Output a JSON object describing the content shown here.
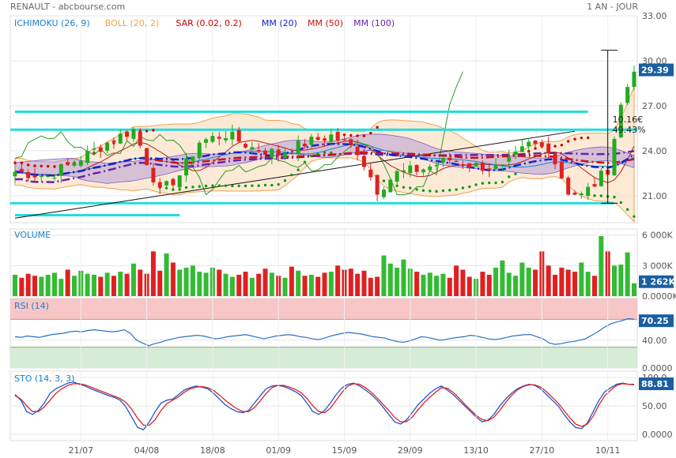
{
  "header": {
    "instrument": "RENAULT - abcbourse.com",
    "period": "1 AN - JOUR"
  },
  "colors": {
    "up": "#22aa22",
    "down": "#dd2222",
    "mm20": "#1122cc",
    "mm50": "#cc1111",
    "mm100": "#6622aa",
    "boll": "#f0a050",
    "sar": "#cc0000",
    "ichimoku": "#1a7fcf",
    "support": "#22dddd",
    "rsi_over": "#f7c6c6",
    "rsi_under": "#d6ecd6",
    "stoK": "#2255cc",
    "stoD": "#dd2222",
    "tag": "#1a5fa0",
    "tenkan": "#b02020",
    "chikou": "#2a9a2a"
  },
  "chart_data": [
    {
      "type": "candlestick",
      "title": "",
      "legend": [
        {
          "label": "ICHIMOKU (26, 9)",
          "color": "#1a7fcf"
        },
        {
          "label": "BOLL (20, 2)",
          "color": "#f0a050"
        },
        {
          "label": "SAR (0.02, 0.2)",
          "color": "#cc0000"
        },
        {
          "label": "MM (20)",
          "color": "#1122cc"
        },
        {
          "label": "MM (50)",
          "color": "#cc1111"
        },
        {
          "label": "MM (100)",
          "color": "#6622aa"
        }
      ],
      "y_ticks": [
        "33.00",
        "30.00",
        "27.00",
        "24.00",
        "21.00"
      ],
      "ylim": [
        19.2,
        33.0
      ],
      "last_value": "29.39",
      "annotation": {
        "amount": "10.16€",
        "percent": "49.43%",
        "from": 20.5,
        "to": 30.7
      },
      "support_levels": [
        26.6,
        25.4,
        20.5,
        19.7
      ],
      "trendline": {
        "from_index": 0,
        "from_value": 19.5,
        "to_index": 85,
        "to_value": 25.3
      },
      "mm20_last": 24.5,
      "mm50_last": 23.3,
      "mm100_last": 23.2
    },
    {
      "type": "bar",
      "title": "VOLUME",
      "y_ticks": [
        "6 000K",
        "3 000K",
        "0.0000K"
      ],
      "ylim": [
        0,
        6600
      ],
      "last_value": "1 262K",
      "values": [
        2100,
        1800,
        2200,
        2000,
        1900,
        2100,
        2300,
        1700,
        2600,
        2000,
        2500,
        2200,
        2100,
        1900,
        2300,
        2000,
        2400,
        2200,
        3200,
        2600,
        2200,
        4400,
        2500,
        4200,
        3300,
        2600,
        2800,
        3000,
        2400,
        2300,
        2800,
        2600,
        2200,
        1900,
        2100,
        2400,
        1800,
        2200,
        2700,
        2300,
        2000,
        1800,
        2900,
        2500,
        2000,
        2100,
        1900,
        2300,
        2400,
        3000,
        2600,
        2700,
        2200,
        2500,
        1800,
        1900,
        4000,
        3200,
        2800,
        3600,
        2700,
        2400,
        2100,
        2300,
        2000,
        2200,
        1800,
        3000,
        2600,
        1900,
        1700,
        2400,
        2100,
        2800,
        3500,
        2300,
        2000,
        3300,
        2800,
        2600,
        4400,
        3000,
        2100,
        2800,
        2600,
        2400,
        3300,
        2400,
        2000,
        5900,
        4400,
        3000,
        3100,
        4300,
        1262
      ]
    },
    {
      "type": "line",
      "title": "RSI (14)",
      "y_ticks": [
        "40.00",
        "0.0000"
      ],
      "ylim": [
        0,
        100
      ],
      "overbought": 70,
      "oversold": 30,
      "last_value": "70.25",
      "values": [
        45,
        44,
        46,
        45,
        44,
        46,
        48,
        49,
        50,
        52,
        53,
        52,
        54,
        55,
        54,
        53,
        52,
        53,
        55,
        50,
        40,
        36,
        32,
        35,
        37,
        40,
        42,
        44,
        45,
        46,
        47,
        46,
        44,
        42,
        43,
        45,
        46,
        47,
        48,
        46,
        44,
        42,
        44,
        46,
        47,
        48,
        47,
        45,
        44,
        42,
        41,
        43,
        46,
        48,
        50,
        51,
        50,
        49,
        47,
        45,
        44,
        43,
        40,
        38,
        37,
        39,
        42,
        45,
        44,
        42,
        40,
        41,
        43,
        44,
        45,
        47,
        46,
        44,
        42,
        41,
        42,
        44,
        46,
        47,
        48,
        48,
        45,
        42,
        36,
        34,
        35,
        37,
        38,
        40,
        42,
        47,
        52,
        58,
        63,
        66,
        68,
        71,
        70
      ]
    },
    {
      "type": "line",
      "title": "STO (14, 3, 3)",
      "y_ticks": [
        "100.0",
        "50.00",
        "0.0000"
      ],
      "ylim": [
        0,
        100
      ],
      "last_value": "88.81",
      "series": [
        {
          "values": [
            70,
            60,
            40,
            35,
            42,
            55,
            72,
            80,
            85,
            90,
            92,
            88,
            85,
            80,
            76,
            72,
            68,
            65,
            60,
            48,
            30,
            12,
            8,
            22,
            40,
            55,
            60,
            62,
            70,
            78,
            82,
            85,
            83,
            80,
            72,
            62,
            52,
            45,
            40,
            38,
            42,
            55,
            68,
            80,
            85,
            86,
            84,
            80,
            75,
            68,
            55,
            40,
            35,
            42,
            55,
            70,
            82,
            88,
            90,
            85,
            78,
            70,
            60,
            48,
            35,
            22,
            18,
            25,
            38,
            52,
            62,
            72,
            80,
            85,
            78,
            70,
            60,
            50,
            40,
            30,
            22,
            25,
            35,
            50,
            62,
            72,
            80,
            85,
            88,
            86,
            80,
            70,
            60,
            50,
            35,
            22,
            12,
            10,
            20,
            40,
            60,
            75,
            82,
            88,
            90,
            88,
            87
          ]
        },
        {
          "values": [
            68,
            62,
            50,
            40,
            40,
            48,
            60,
            72,
            80,
            86,
            89,
            89,
            87,
            83,
            79,
            75,
            71,
            67,
            63,
            56,
            44,
            28,
            16,
            16,
            26,
            42,
            54,
            60,
            66,
            74,
            80,
            83,
            84,
            82,
            77,
            69,
            60,
            52,
            45,
            40,
            40,
            47,
            59,
            72,
            82,
            86,
            86,
            83,
            79,
            73,
            63,
            50,
            40,
            38,
            46,
            60,
            74,
            85,
            89,
            88,
            82,
            74,
            64,
            53,
            42,
            30,
            22,
            22,
            30,
            43,
            55,
            65,
            74,
            82,
            81,
            74,
            64,
            53,
            43,
            33,
            26,
            24,
            30,
            42,
            56,
            68,
            78,
            84,
            87,
            87,
            83,
            75,
            65,
            55,
            42,
            29,
            18,
            14,
            18,
            32,
            52,
            68,
            78,
            86,
            89,
            88,
            88
          ]
        }
      ]
    }
  ],
  "x_labels": [
    {
      "label": "21/07",
      "i": 10
    },
    {
      "label": "04/08",
      "i": 20
    },
    {
      "label": "18/08",
      "i": 30
    },
    {
      "label": "01/09",
      "i": 40
    },
    {
      "label": "15/09",
      "i": 50
    },
    {
      "label": "29/09",
      "i": 60
    },
    {
      "label": "13/10",
      "i": 70
    },
    {
      "label": "27/10",
      "i": 80
    },
    {
      "label": "10/11",
      "i": 90
    }
  ]
}
